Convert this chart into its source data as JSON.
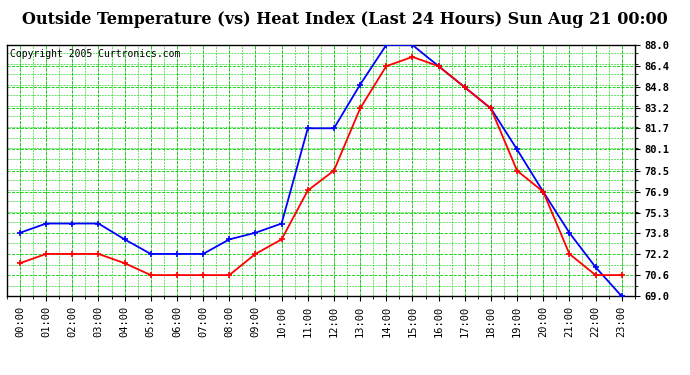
{
  "title": "Outside Temperature (vs) Heat Index (Last 24 Hours) Sun Aug 21 00:00",
  "copyright": "Copyright 2005 Curtronics.com",
  "hours": [
    "00:00",
    "01:00",
    "02:00",
    "03:00",
    "04:00",
    "05:00",
    "06:00",
    "07:00",
    "08:00",
    "09:00",
    "10:00",
    "11:00",
    "12:00",
    "13:00",
    "14:00",
    "15:00",
    "16:00",
    "17:00",
    "18:00",
    "19:00",
    "20:00",
    "21:00",
    "22:00",
    "23:00"
  ],
  "blue_temp": [
    73.8,
    74.5,
    74.5,
    74.5,
    73.3,
    72.2,
    72.2,
    72.2,
    73.3,
    73.8,
    74.5,
    81.7,
    81.7,
    85.0,
    88.0,
    88.0,
    86.4,
    84.8,
    83.2,
    80.1,
    76.9,
    73.8,
    71.2,
    69.0
  ],
  "red_heat": [
    71.5,
    72.2,
    72.2,
    72.2,
    71.5,
    70.6,
    70.6,
    70.6,
    70.6,
    72.2,
    73.3,
    77.0,
    78.5,
    83.2,
    86.4,
    87.1,
    86.4,
    84.8,
    83.2,
    78.5,
    76.9,
    72.2,
    70.6,
    70.6
  ],
  "blue_color": "#0000ff",
  "red_color": "#ff0000",
  "ylim_min": 69.0,
  "ylim_max": 88.0,
  "yticks": [
    69.0,
    70.6,
    72.2,
    73.8,
    75.3,
    76.9,
    78.5,
    80.1,
    81.7,
    83.2,
    84.8,
    86.4,
    88.0
  ],
  "bg_color": "#ffffff",
  "title_fontsize": 11.5,
  "copyright_fontsize": 7,
  "tick_fontsize": 7.5
}
